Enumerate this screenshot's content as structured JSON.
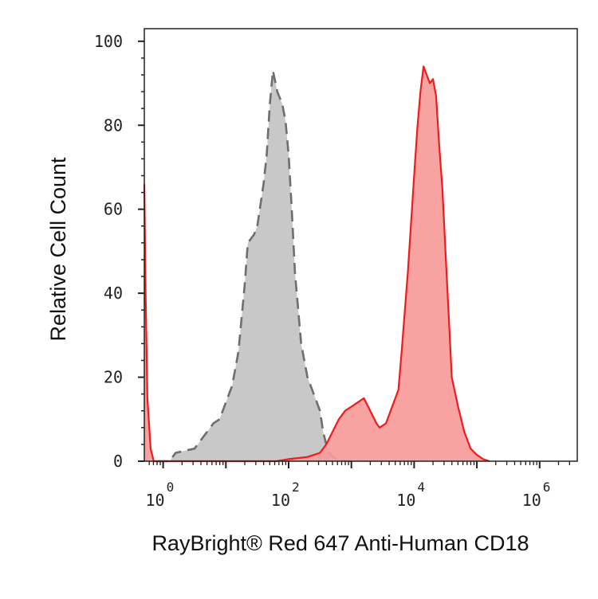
{
  "chart_data": {
    "type": "area",
    "xlabel": "RayBright® Red 647 Anti-Human CD18",
    "ylabel": "Relative Cell Count",
    "x_scale": "log",
    "xlim_log10": [
      -0.3,
      6.6
    ],
    "ylim": [
      0,
      103
    ],
    "y_ticks": [
      "0",
      "20",
      "40",
      "60",
      "80",
      "100"
    ],
    "y_tick_values": [
      0,
      20,
      40,
      60,
      80,
      100
    ],
    "x_ticks": [
      {
        "base": "10",
        "exp": "0",
        "log10": 0
      },
      {
        "base": "10",
        "exp": "2",
        "log10": 2
      },
      {
        "base": "10",
        "exp": "4",
        "log10": 4
      },
      {
        "base": "10",
        "exp": "6",
        "log10": 6
      }
    ],
    "grid": false,
    "legend": "none",
    "series": [
      {
        "color_fill": "#c8c8c8",
        "color_line": "#6e6e6e",
        "line_style": "dashed",
        "points_log10x_y": [
          [
            -0.1,
            0
          ],
          [
            0.1,
            0
          ],
          [
            0.2,
            2
          ],
          [
            0.5,
            3
          ],
          [
            0.7,
            7
          ],
          [
            0.8,
            9
          ],
          [
            0.9,
            10
          ],
          [
            1.0,
            14
          ],
          [
            1.1,
            18
          ],
          [
            1.2,
            26
          ],
          [
            1.3,
            42
          ],
          [
            1.35,
            52
          ],
          [
            1.45,
            54
          ],
          [
            1.5,
            56
          ],
          [
            1.6,
            66
          ],
          [
            1.65,
            73
          ],
          [
            1.7,
            85
          ],
          [
            1.75,
            93
          ],
          [
            1.82,
            88
          ],
          [
            1.9,
            85
          ],
          [
            1.95,
            81
          ],
          [
            2.0,
            73
          ],
          [
            2.05,
            60
          ],
          [
            2.1,
            45
          ],
          [
            2.2,
            28
          ],
          [
            2.3,
            20
          ],
          [
            2.4,
            16
          ],
          [
            2.5,
            12
          ],
          [
            2.55,
            7
          ],
          [
            2.6,
            4
          ],
          [
            2.65,
            2
          ],
          [
            2.7,
            1
          ],
          [
            2.8,
            0.3
          ],
          [
            3.0,
            0
          ]
        ]
      },
      {
        "color_fill": "#f79a9a",
        "color_line": "#ee1c1c",
        "line_style": "solid",
        "points_log10x_y": [
          [
            -0.3,
            66
          ],
          [
            -0.28,
            40
          ],
          [
            -0.25,
            15
          ],
          [
            -0.2,
            3
          ],
          [
            -0.15,
            0
          ],
          [
            1.8,
            0
          ],
          [
            2.0,
            0.5
          ],
          [
            2.3,
            1
          ],
          [
            2.5,
            2
          ],
          [
            2.6,
            4
          ],
          [
            2.7,
            7
          ],
          [
            2.8,
            10
          ],
          [
            2.9,
            12
          ],
          [
            3.0,
            13
          ],
          [
            3.1,
            14
          ],
          [
            3.2,
            15
          ],
          [
            3.3,
            12
          ],
          [
            3.4,
            9
          ],
          [
            3.45,
            8
          ],
          [
            3.55,
            9
          ],
          [
            3.65,
            13
          ],
          [
            3.75,
            17
          ],
          [
            3.8,
            26
          ],
          [
            3.9,
            45
          ],
          [
            4.0,
            68
          ],
          [
            4.05,
            79
          ],
          [
            4.1,
            88
          ],
          [
            4.15,
            94
          ],
          [
            4.2,
            92
          ],
          [
            4.25,
            90
          ],
          [
            4.3,
            91
          ],
          [
            4.35,
            87
          ],
          [
            4.4,
            75
          ],
          [
            4.45,
            65
          ],
          [
            4.5,
            50
          ],
          [
            4.55,
            35
          ],
          [
            4.6,
            20
          ],
          [
            4.7,
            13
          ],
          [
            4.8,
            7
          ],
          [
            4.9,
            3
          ],
          [
            5.0,
            1.5
          ],
          [
            5.1,
            0.5
          ],
          [
            5.2,
            0
          ]
        ]
      }
    ]
  }
}
